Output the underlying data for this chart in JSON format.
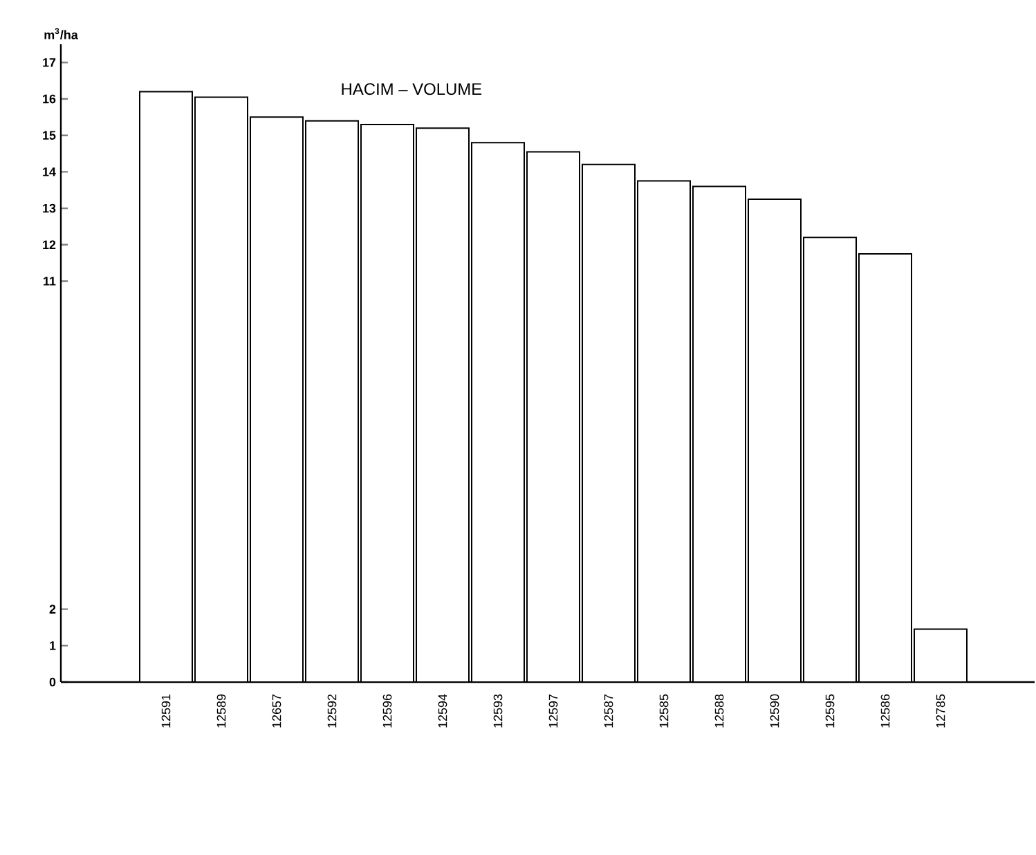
{
  "chart_data": {
    "type": "bar",
    "title": "HACIM – VOLUME",
    "ylabel": "m$^{3}$/ha",
    "categories": [
      "12591",
      "12589",
      "12657",
      "12592",
      "12596",
      "12594",
      "12593",
      "12597",
      "12587",
      "12585",
      "12588",
      "12590",
      "12595",
      "12586",
      "12785"
    ],
    "values": [
      16.2,
      16.05,
      15.5,
      15.4,
      15.3,
      15.2,
      14.8,
      14.55,
      14.2,
      13.75,
      13.6,
      13.25,
      12.2,
      11.75,
      1.45
    ],
    "color": "#ffffff",
    "ylim": [
      0,
      17.5
    ],
    "yticks": [
      0,
      1,
      2,
      11,
      12,
      13,
      14,
      15,
      16,
      17
    ],
    "grid": false
  }
}
